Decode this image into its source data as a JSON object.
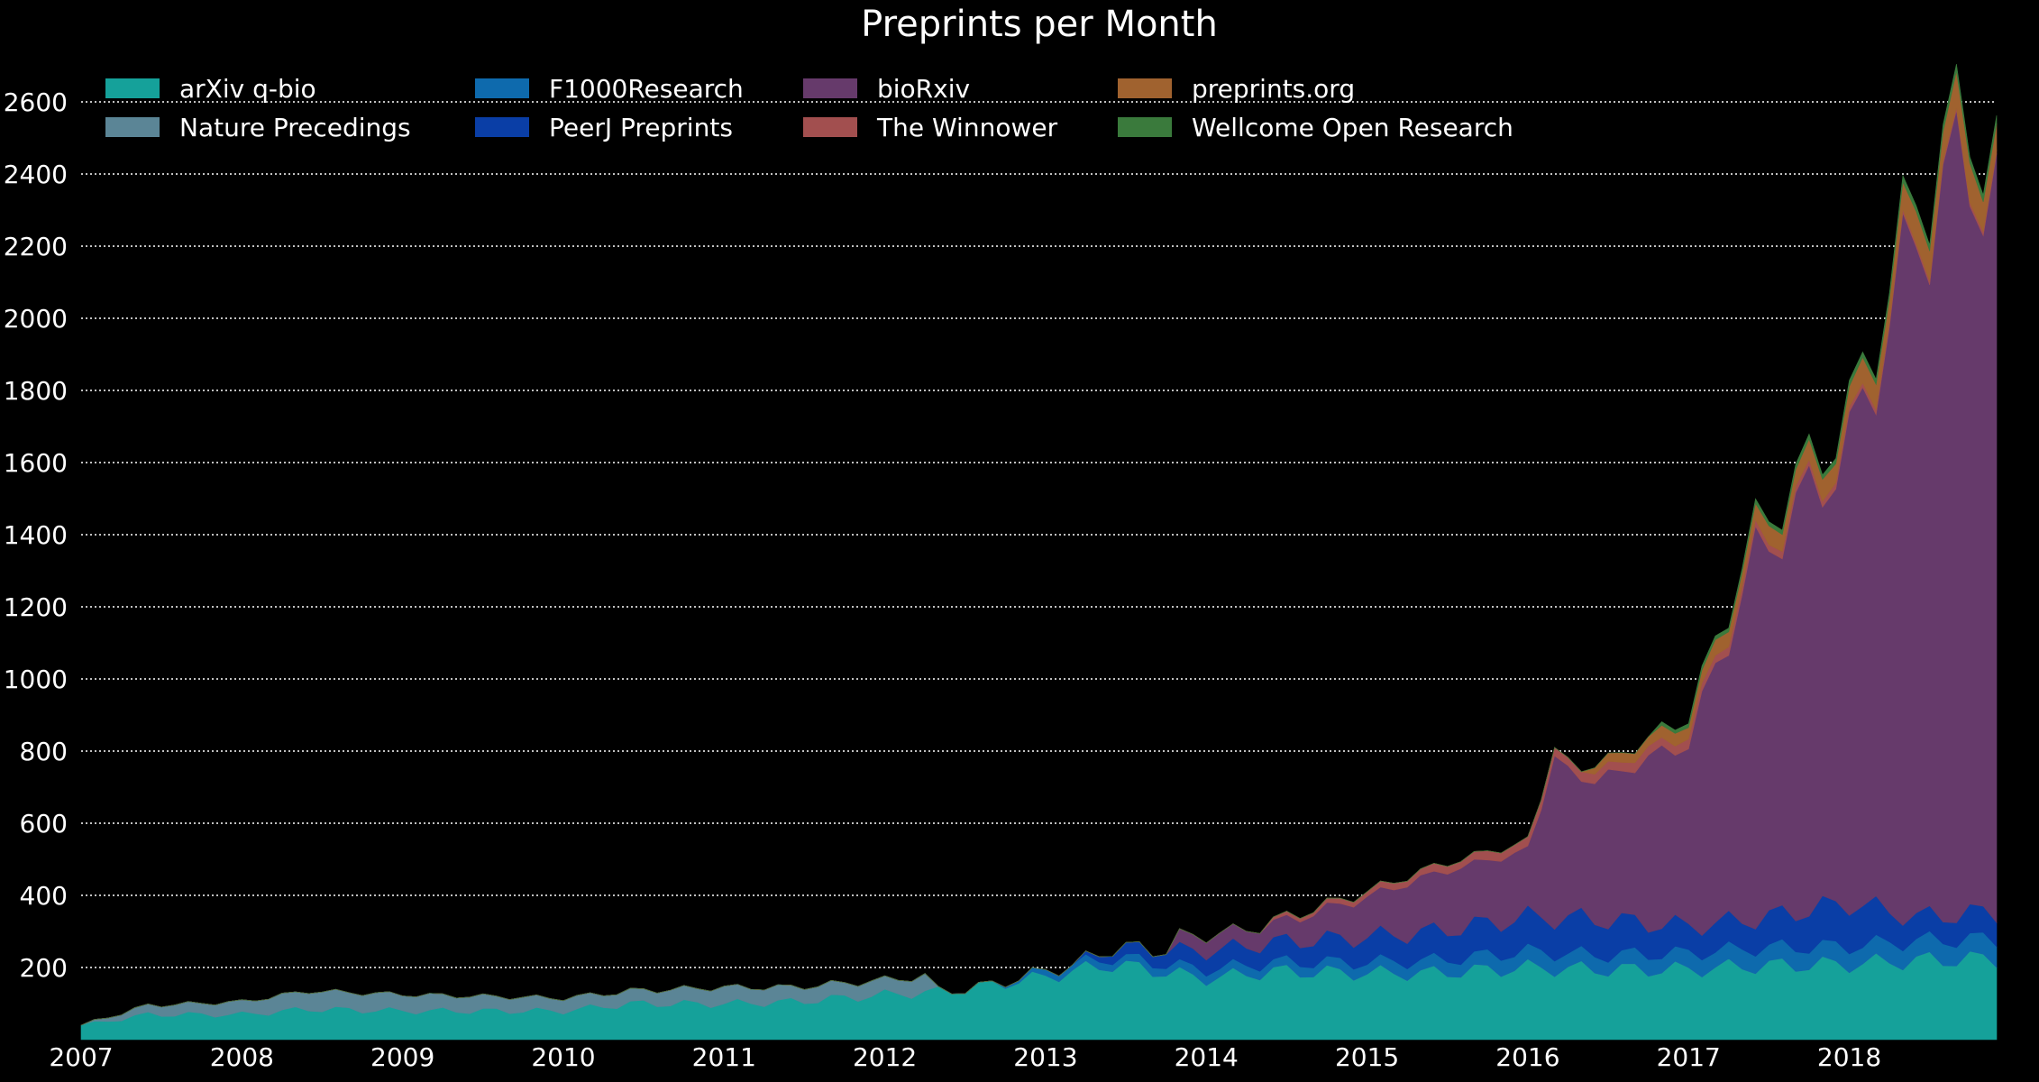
{
  "chart_data": {
    "type": "area",
    "stacked": true,
    "title": "Preprints per Month",
    "xlabel": "",
    "ylabel": "",
    "x_ticks": [
      "2007",
      "2008",
      "2009",
      "2010",
      "2011",
      "2012",
      "2013",
      "2014",
      "2015",
      "2016",
      "2017",
      "2018"
    ],
    "y_ticks": [
      200,
      400,
      600,
      800,
      1000,
      1200,
      1400,
      1600,
      1800,
      2000,
      2200,
      2400,
      2600
    ],
    "ylim": [
      0,
      2750
    ],
    "xlim": [
      "2007-01",
      "2018-12"
    ],
    "grid": "horizontal dotted",
    "legend_position": "top-left",
    "series": [
      {
        "name": "arXiv q-bio",
        "color": "#15a19a",
        "points": [
          [
            "2007-01",
            40
          ],
          [
            "2007-06",
            70
          ],
          [
            "2008-01",
            70
          ],
          [
            "2008-06",
            85
          ],
          [
            "2009-01",
            80
          ],
          [
            "2010-01",
            80
          ],
          [
            "2010-06",
            100
          ],
          [
            "2011-01",
            100
          ],
          [
            "2011-06",
            105
          ],
          [
            "2012-01",
            125
          ],
          [
            "2012-06",
            135
          ],
          [
            "2013-01",
            175
          ],
          [
            "2013-06",
            210
          ],
          [
            "2014-01",
            170
          ],
          [
            "2014-06",
            190
          ],
          [
            "2015-01",
            185
          ],
          [
            "2015-06",
            185
          ],
          [
            "2016-01",
            200
          ],
          [
            "2016-06",
            195
          ],
          [
            "2017-01",
            195
          ],
          [
            "2017-06",
            205
          ],
          [
            "2018-01",
            210
          ],
          [
            "2018-06",
            220
          ],
          [
            "2018-12",
            225
          ]
        ]
      },
      {
        "name": "Nature Precedings",
        "color": "#5b8596",
        "points": [
          [
            "2007-01",
            0
          ],
          [
            "2007-06",
            25
          ],
          [
            "2008-01",
            35
          ],
          [
            "2008-06",
            50
          ],
          [
            "2009-01",
            45
          ],
          [
            "2010-01",
            35
          ],
          [
            "2010-06",
            35
          ],
          [
            "2011-01",
            45
          ],
          [
            "2011-06",
            40
          ],
          [
            "2012-01",
            40
          ],
          [
            "2012-04",
            45
          ],
          [
            "2012-05",
            0
          ],
          [
            "2018-12",
            0
          ]
        ]
      },
      {
        "name": "F1000Research",
        "color": "#0e6aad",
        "points": [
          [
            "2007-01",
            0
          ],
          [
            "2012-09",
            0
          ],
          [
            "2013-01",
            15
          ],
          [
            "2013-06",
            20
          ],
          [
            "2014-01",
            25
          ],
          [
            "2014-06",
            25
          ],
          [
            "2015-01",
            30
          ],
          [
            "2015-06",
            35
          ],
          [
            "2016-01",
            45
          ],
          [
            "2016-06",
            40
          ],
          [
            "2017-01",
            45
          ],
          [
            "2017-06",
            50
          ],
          [
            "2018-01",
            50
          ],
          [
            "2018-06",
            55
          ],
          [
            "2018-12",
            55
          ]
        ]
      },
      {
        "name": "PeerJ Preprints",
        "color": "#0a3ea6",
        "points": [
          [
            "2007-01",
            0
          ],
          [
            "2013-03",
            0
          ],
          [
            "2013-06",
            25
          ],
          [
            "2014-01",
            50
          ],
          [
            "2014-06",
            55
          ],
          [
            "2015-01",
            70
          ],
          [
            "2015-06",
            80
          ],
          [
            "2016-01",
            95
          ],
          [
            "2016-06",
            100
          ],
          [
            "2017-01",
            75
          ],
          [
            "2017-06",
            80
          ],
          [
            "2018-01",
            120
          ],
          [
            "2018-06",
            65
          ],
          [
            "2018-12",
            75
          ]
        ]
      },
      {
        "name": "bioRxiv",
        "color": "#663a6b",
        "points": [
          [
            "2007-01",
            0
          ],
          [
            "2013-10",
            0
          ],
          [
            "2013-11",
            40
          ],
          [
            "2014-06",
            50
          ],
          [
            "2015-01",
            110
          ],
          [
            "2015-06",
            160
          ],
          [
            "2016-01",
            185
          ],
          [
            "2016-03",
            430
          ],
          [
            "2016-06",
            380
          ],
          [
            "2017-01",
            510
          ],
          [
            "2017-06",
            1000
          ],
          [
            "2018-01",
            1260
          ],
          [
            "2018-06",
            1890
          ],
          [
            "2018-10",
            2100
          ],
          [
            "2018-12",
            1940
          ]
        ]
      },
      {
        "name": "The Winnower",
        "color": "#a24f4f",
        "points": [
          [
            "2007-01",
            0
          ],
          [
            "2014-05",
            0
          ],
          [
            "2014-06",
            8
          ],
          [
            "2015-01",
            15
          ],
          [
            "2015-06",
            20
          ],
          [
            "2016-01",
            25
          ],
          [
            "2016-06",
            25
          ],
          [
            "2017-01",
            25
          ],
          [
            "2017-06",
            20
          ],
          [
            "2018-01",
            15
          ],
          [
            "2018-06",
            10
          ],
          [
            "2018-12",
            10
          ]
        ]
      },
      {
        "name": "preprints.org",
        "color": "#a0622f",
        "points": [
          [
            "2007-01",
            0
          ],
          [
            "2016-05",
            0
          ],
          [
            "2016-06",
            20
          ],
          [
            "2017-01",
            35
          ],
          [
            "2017-06",
            45
          ],
          [
            "2018-01",
            60
          ],
          [
            "2018-06",
            80
          ],
          [
            "2018-10",
            100
          ],
          [
            "2018-12",
            80
          ]
        ]
      },
      {
        "name": "Wellcome Open Research",
        "color": "#3a7a3c",
        "points": [
          [
            "2007-01",
            0
          ],
          [
            "2016-10",
            0
          ],
          [
            "2016-11",
            10
          ],
          [
            "2017-06",
            12
          ],
          [
            "2018-01",
            15
          ],
          [
            "2018-06",
            18
          ],
          [
            "2018-12",
            20
          ]
        ]
      }
    ]
  }
}
